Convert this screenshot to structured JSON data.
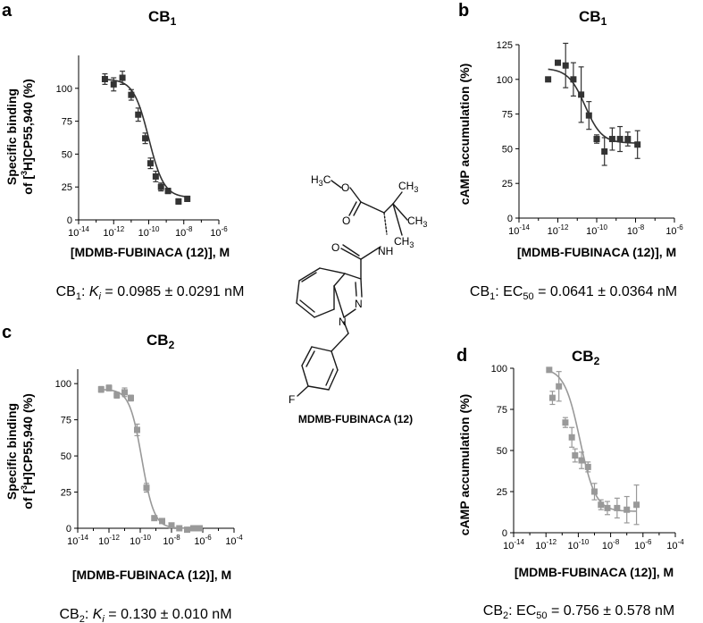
{
  "colors": {
    "dark": "#333333",
    "grey": "#999999",
    "bond": "#1a1a1a"
  },
  "molecule": {
    "name": "MDMB-FUBINACA (12)",
    "atoms": {
      "h3c": "H",
      "h3c_sub": "3",
      "h3c_c": "C",
      "o1": "O",
      "o2": "O",
      "o3": "O",
      "ch3a": "CH",
      "ch3a_sub": "3",
      "ch3b": "CH",
      "ch3b_sub": "3",
      "ch3c": "CH",
      "ch3c_sub": "3",
      "nh": "NH",
      "n1": "N",
      "n2": "N",
      "f": "F"
    }
  },
  "panels": [
    {
      "label": "a",
      "title_main": "CB",
      "title_sub": "1",
      "xlabel": "[MDMB-FUBINACA (12)], M",
      "ylabel_line1": "Specific binding",
      "ylabel_line2_pre": "of [",
      "ylabel_line2_sup": "3",
      "ylabel_line2_post": "H]CP55,940 (%)",
      "caption": {
        "pre": "CB",
        "sub": "1",
        "mid": ": ",
        "ital": "K",
        "isub": "i",
        "post": " = 0.0985 ± 0.0291 nM"
      }
    },
    {
      "label": "b",
      "title_main": "CB",
      "title_sub": "1",
      "xlabel": "[MDMB-FUBINACA (12)], M",
      "ylabel": "cAMP accumulation (%)",
      "caption": {
        "pre": "CB",
        "sub": "1",
        "mid": ": EC",
        "isub": "50",
        "post": " = 0.0641 ± 0.0364 nM"
      }
    },
    {
      "label": "c",
      "title_main": "CB",
      "title_sub": "2",
      "xlabel": "[MDMB-FUBINACA (12)], M",
      "ylabel_line1": "Specific binding",
      "ylabel_line2_pre": "of [",
      "ylabel_line2_sup": "3",
      "ylabel_line2_post": "H]CP55,940 (%)",
      "caption": {
        "pre": "CB",
        "sub": "2",
        "mid": ": ",
        "ital": "K",
        "isub": "i",
        "post": " = 0.130 ± 0.010 nM"
      }
    },
    {
      "label": "d",
      "title_main": "CB",
      "title_sub": "2",
      "xlabel": "[MDMB-FUBINACA (12)], M",
      "ylabel": "cAMP accumulation (%)",
      "caption": {
        "pre": "CB",
        "sub": "2",
        "mid": ": EC",
        "isub": "50",
        "post": " = 0.756 ± 0.578 nM"
      }
    }
  ],
  "chart_data": [
    {
      "type": "scatter",
      "panel": "a",
      "title": "CB1",
      "xlabel": "[MDMB-FUBINACA (12)], M",
      "ylabel": "Specific binding of [3H]CP55,940 (%)",
      "x_scale": "log",
      "xticks_exp": [
        -14,
        -12,
        -10,
        -8,
        -6
      ],
      "xlim_exp": [
        -14,
        -6
      ],
      "yticks": [
        0,
        25,
        50,
        75,
        100
      ],
      "ylim": [
        0,
        125
      ],
      "color": "#333333",
      "series": [
        {
          "log_x": [
            -12.5,
            -12.0,
            -11.5,
            -11.0,
            -10.6,
            -10.2,
            -9.9,
            -9.6,
            -9.3,
            -8.9,
            -8.3,
            -7.8
          ],
          "y": [
            107,
            103,
            108,
            95,
            80,
            62,
            43,
            33,
            25,
            22,
            14,
            16
          ],
          "err": [
            4,
            5,
            5,
            4,
            5,
            4,
            4,
            4,
            3,
            2,
            2,
            2
          ]
        }
      ],
      "curve": {
        "top": 107,
        "bottom": 17,
        "log_ic50": -10.0,
        "hill": 1,
        "log_x_range": [
          -12.5,
          -7.8
        ]
      }
    },
    {
      "type": "scatter",
      "panel": "b",
      "title": "CB1",
      "xlabel": "[MDMB-FUBINACA (12)], M",
      "ylabel": "cAMP accumulation (%)",
      "x_scale": "log",
      "xticks_exp": [
        -14,
        -12,
        -10,
        -8,
        -6
      ],
      "xlim_exp": [
        -14,
        -6
      ],
      "yticks": [
        0,
        25,
        50,
        75,
        100,
        125
      ],
      "ylim": [
        0,
        125
      ],
      "color": "#333333",
      "series": [
        {
          "log_x": [
            -12.5,
            -12.0,
            -11.6,
            -11.2,
            -10.8,
            -10.4,
            -10.0,
            -9.6,
            -9.2,
            -8.8,
            -8.4,
            -7.9
          ],
          "y": [
            100,
            112,
            110,
            100,
            89,
            74,
            57,
            48,
            57,
            57,
            57,
            53
          ],
          "err": [
            0,
            0,
            16,
            12,
            20,
            10,
            3,
            10,
            8,
            9,
            5,
            10
          ]
        }
      ],
      "curve": {
        "top": 108,
        "bottom": 54,
        "log_ic50": -10.6,
        "hill": 1,
        "log_x_range": [
          -12.5,
          -7.9
        ]
      }
    },
    {
      "type": "scatter",
      "panel": "c",
      "title": "CB2",
      "xlabel": "[MDMB-FUBINACA (12)], M",
      "ylabel": "Specific binding of [3H]CP55,940 (%)",
      "x_scale": "log",
      "xticks_exp": [
        -14,
        -12,
        -10,
        -8,
        -6,
        -4
      ],
      "xlim_exp": [
        -14,
        -4
      ],
      "yticks": [
        0,
        25,
        50,
        75,
        100
      ],
      "ylim": [
        0,
        110
      ],
      "color": "#999999",
      "series": [
        {
          "log_x": [
            -12.5,
            -12.0,
            -11.5,
            -11.0,
            -10.6,
            -10.2,
            -9.6,
            -9.1,
            -8.6,
            -8.0,
            -7.5,
            -7.0,
            -6.6,
            -6.2
          ],
          "y": [
            96,
            97,
            92,
            94,
            90,
            68,
            28,
            7,
            5,
            2,
            0,
            -1,
            0,
            0
          ],
          "err": [
            2,
            2,
            2,
            3,
            2,
            4,
            3,
            1,
            1,
            1,
            1,
            1,
            1,
            1
          ]
        }
      ],
      "curve": {
        "top": 96,
        "bottom": 0,
        "log_ic50": -9.9,
        "hill": 1.1,
        "log_x_range": [
          -12.5,
          -6.2
        ]
      }
    },
    {
      "type": "scatter",
      "panel": "d",
      "title": "CB2",
      "xlabel": "[MDMB-FUBINACA (12)], M",
      "ylabel": "cAMP accumulation (%)",
      "x_scale": "log",
      "xticks_exp": [
        -14,
        -12,
        -10,
        -8,
        -6,
        -4
      ],
      "xlim_exp": [
        -14,
        -4
      ],
      "yticks": [
        0,
        25,
        50,
        75,
        100
      ],
      "ylim": [
        0,
        100
      ],
      "color": "#999999",
      "series": [
        {
          "log_x": [
            -11.8,
            -11.6,
            -11.2,
            -10.8,
            -10.4,
            -10.2,
            -9.8,
            -9.4,
            -9.0,
            -8.6,
            -8.2,
            -7.6,
            -7.0,
            -6.4
          ],
          "y": [
            99,
            82,
            89,
            67,
            58,
            47,
            44,
            40,
            25,
            17,
            15,
            15,
            14,
            17
          ],
          "err": [
            1,
            4,
            9,
            3,
            6,
            4,
            5,
            3,
            5,
            3,
            4,
            6,
            8,
            12
          ]
        }
      ],
      "curve": {
        "top": 100,
        "bottom": 13,
        "log_ic50": -9.9,
        "hill": 0.9,
        "log_x_range": [
          -11.8,
          -6.4
        ]
      }
    }
  ]
}
